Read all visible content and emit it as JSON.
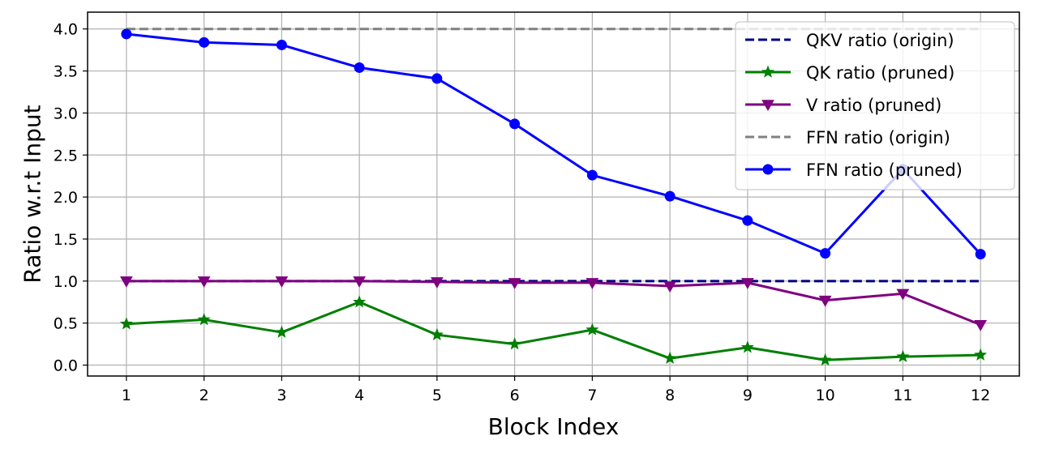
{
  "chart_data": {
    "type": "line",
    "xlabel": "Block Index",
    "ylabel": "Ratio w.r.t Input",
    "x": [
      1,
      2,
      3,
      4,
      5,
      6,
      7,
      8,
      9,
      10,
      11,
      12
    ],
    "xlim": [
      0.5,
      12.5
    ],
    "ylim": [
      -0.13,
      4.2
    ],
    "xticks": [
      1,
      2,
      3,
      4,
      5,
      6,
      7,
      8,
      9,
      10,
      11,
      12
    ],
    "xtick_labels": [
      "1",
      "2",
      "3",
      "4",
      "5",
      "6",
      "7",
      "8",
      "9",
      "10",
      "11",
      "12"
    ],
    "yticks": [
      0.0,
      0.5,
      1.0,
      1.5,
      2.0,
      2.5,
      3.0,
      3.5,
      4.0
    ],
    "ytick_labels": [
      "0.0",
      "0.5",
      "1.0",
      "1.5",
      "2.0",
      "2.5",
      "3.0",
      "3.5",
      "4.0"
    ],
    "grid": true,
    "legend_position": "top-right",
    "series": [
      {
        "name": "QKV ratio (origin)",
        "color": "#00007f",
        "style": "dashed",
        "marker": "none",
        "values": [
          1,
          1,
          1,
          1,
          1,
          1,
          1,
          1,
          1,
          1,
          1,
          1
        ]
      },
      {
        "name": "QK ratio (pruned)",
        "color": "#007f00",
        "style": "solid",
        "marker": "star",
        "values": [
          0.49,
          0.54,
          0.39,
          0.75,
          0.36,
          0.25,
          0.42,
          0.08,
          0.21,
          0.06,
          0.1,
          0.12
        ]
      },
      {
        "name": "V ratio (pruned)",
        "color": "#7f007f",
        "style": "solid",
        "marker": "triangle-down",
        "values": [
          1.0,
          1.0,
          1.0,
          1.0,
          0.99,
          0.98,
          0.98,
          0.94,
          0.98,
          0.77,
          0.85,
          0.48
        ]
      },
      {
        "name": "FFN ratio (origin)",
        "color": "#808080",
        "style": "dashed",
        "marker": "none",
        "values": [
          4,
          4,
          4,
          4,
          4,
          4,
          4,
          4,
          4,
          4,
          4,
          4
        ]
      },
      {
        "name": "FFN ratio (pruned)",
        "color": "#0000ff",
        "style": "solid",
        "marker": "circle",
        "values": [
          3.94,
          3.84,
          3.81,
          3.54,
          3.41,
          2.87,
          2.26,
          2.01,
          1.72,
          1.33,
          2.33,
          1.32
        ]
      }
    ]
  }
}
